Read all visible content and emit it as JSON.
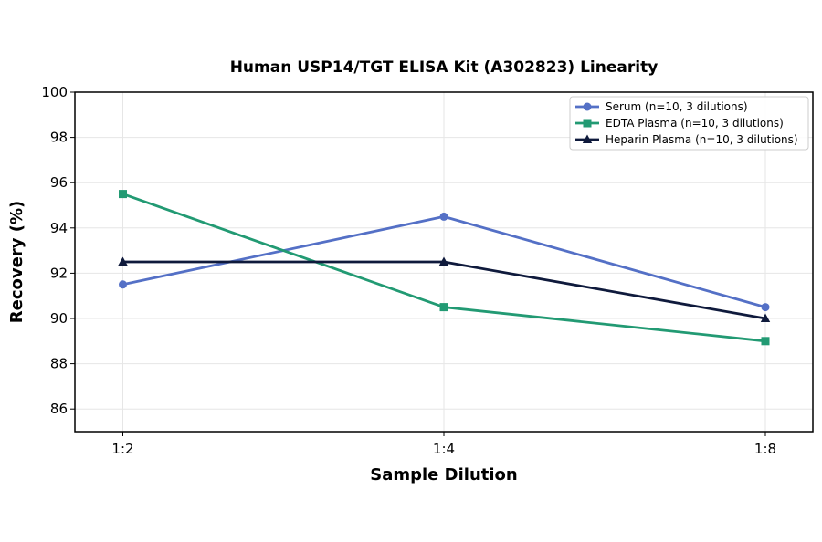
{
  "chart_data": {
    "type": "line",
    "title": "Human USP14/TGT ELISA Kit (A302823) Linearity",
    "xlabel": "Sample Dilution",
    "ylabel": "Recovery (%)",
    "categories": [
      "1:2",
      "1:4",
      "1:8"
    ],
    "ylim": [
      85,
      100
    ],
    "yticks": [
      86,
      88,
      90,
      92,
      94,
      96,
      98,
      100
    ],
    "grid": true,
    "legend_position": "top-right",
    "series": [
      {
        "name": "Serum (n=10, 3 dilutions)",
        "values": [
          91.5,
          94.5,
          90.5
        ],
        "color": "#5470c6",
        "marker": "circle"
      },
      {
        "name": "EDTA Plasma (n=10, 3 dilutions)",
        "values": [
          95.5,
          90.5,
          89.0
        ],
        "color": "#229a73",
        "marker": "square"
      },
      {
        "name": "Heparin Plasma (n=10, 3 dilutions)",
        "values": [
          92.5,
          92.5,
          90.0
        ],
        "color": "#0f1a3c",
        "marker": "triangle"
      }
    ]
  }
}
